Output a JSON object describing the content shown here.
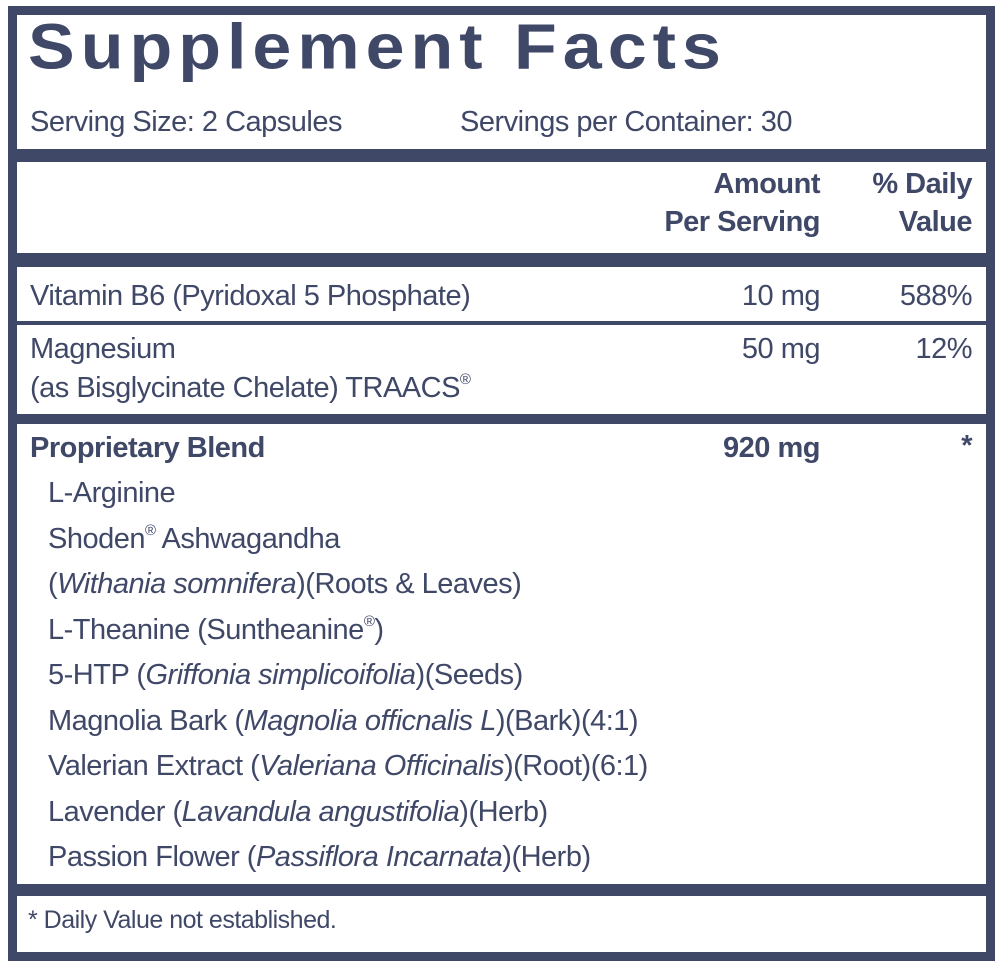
{
  "title": "Supplement Facts",
  "serving_size": "Serving Size: 2 Capsules",
  "servings_per_container": "Servings per Container: 30",
  "header": {
    "amount_line1": "Amount",
    "amount_line2": "Per Serving",
    "dv_line1": "% Daily",
    "dv_line2": "Value"
  },
  "rows": [
    {
      "name": "Vitamin B6 (Pyridoxal 5 Phosphate)",
      "amount": "10 mg",
      "dv": "588%"
    },
    {
      "name": "Magnesium",
      "name_line2": "(as Bisglycinate Chelate) TRAACS",
      "mark": "®",
      "amount": "50 mg",
      "dv": "12%"
    }
  ],
  "blend": {
    "name": "Proprietary Blend",
    "amount": "920 mg",
    "dv": "*",
    "items": [
      {
        "a": "L-Arginine"
      },
      {
        "a": "Shoden",
        "sup": "®",
        "b": " Ashwagandha"
      },
      {
        "a": "(",
        "i": "Withania somnifera",
        "b": ")(Roots & Leaves)"
      },
      {
        "a": "L-Theanine (Suntheanine",
        "sup": "®",
        "b": ")"
      },
      {
        "a": "5-HTP (",
        "i": "Griffonia simplicoifolia",
        "b": ")(Seeds)"
      },
      {
        "a": "Magnolia Bark (",
        "i": "Magnolia officnalis L",
        "b": ")(Bark)(4:1)"
      },
      {
        "a": "Valerian Extract (",
        "i": "Valeriana Officinalis",
        "b": ")(Root)(6:1)"
      },
      {
        "a": "Lavender (",
        "i": "Lavandula angustifolia",
        "b": ")(Herb)"
      },
      {
        "a": "Passion Flower (",
        "i": "Passiflora Incarnata",
        "b": ")(Herb)"
      }
    ]
  },
  "footnote": "* Daily Value not established.",
  "colors": {
    "ink": "#404868",
    "background": "#ffffff"
  }
}
